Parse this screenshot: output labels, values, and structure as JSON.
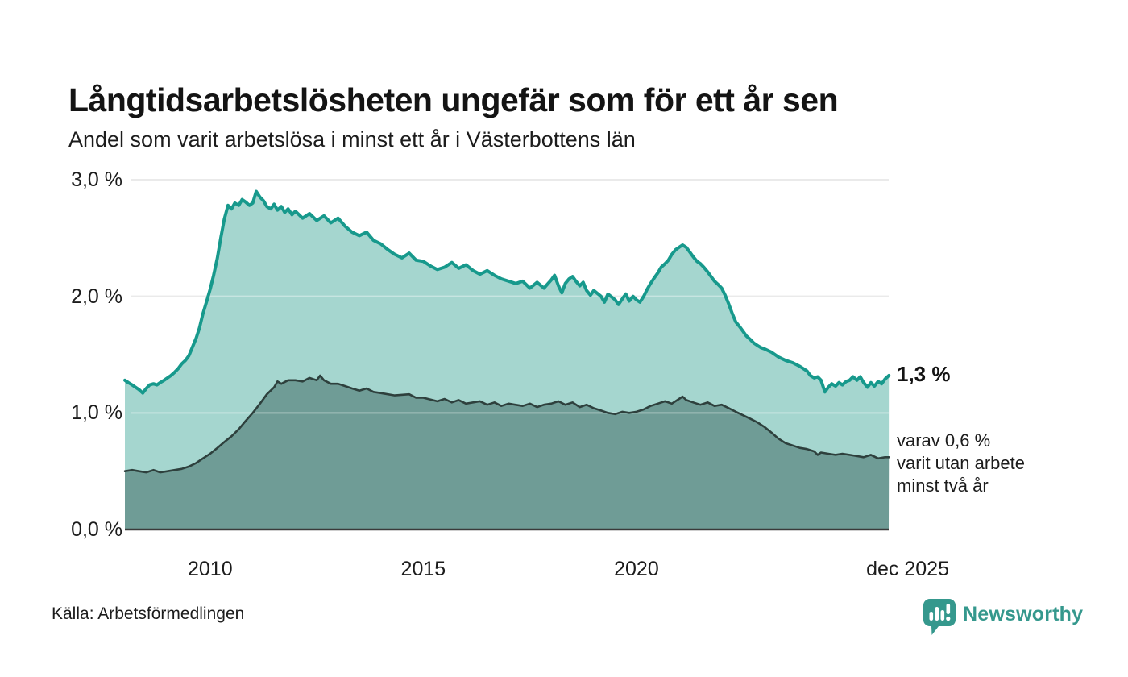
{
  "header": {
    "title": "Långtidsarbetslösheten ungefär som för ett år sen",
    "subtitle": "Andel som varit arbetslösa i minst ett år i Västerbottens län"
  },
  "annotations": {
    "latest_value": "1,3 %",
    "secondary_note": "varav 0,6 %\nvarit utan arbete\nminst två år"
  },
  "source": {
    "label": "Källa: Arbetsförmedlingen"
  },
  "branding": {
    "name": "Newsworthy",
    "icon": "newsworthy-speech-bubble-bar-chart-icon",
    "color": "#35988d"
  },
  "colors": {
    "line_one_year": "#17998c",
    "fill_one_year": "#a5d6cf",
    "line_two_years": "#2e403d",
    "fill_two_years": "#6f9c96",
    "gridline": "#dedede",
    "axis_line": "#3a3a3a",
    "text": "#1c1c1c"
  },
  "chart_data": {
    "type": "area",
    "title": "Långtidsarbetslösheten ungefär som för ett år sen",
    "subtitle": "Andel som varit arbetslösa i minst ett år i Västerbottens län",
    "unit": "%",
    "grid": true,
    "x_axis": {
      "range": [
        2008.0,
        2025.917
      ],
      "ticks": [
        {
          "t": 2010,
          "label": "2010"
        },
        {
          "t": 2015,
          "label": "2015"
        },
        {
          "t": 2020,
          "label": "2020"
        },
        {
          "t": 2025.917,
          "label": "dec 2025"
        }
      ]
    },
    "y_axis": {
      "range": [
        0,
        3
      ],
      "ticks": [
        {
          "v": 3,
          "label": "3,0 %"
        },
        {
          "v": 2,
          "label": "2,0 %"
        },
        {
          "v": 1,
          "label": "1,0 %"
        },
        {
          "v": 0,
          "label": "0,0 %"
        }
      ]
    },
    "series": [
      {
        "name": "arbetslösa minst ett år",
        "latest_label": "1,3 %",
        "line_color": "#17998c",
        "fill_color": "#a5d6cf",
        "line_width": 4,
        "points": [
          [
            2008.0,
            1.28
          ],
          [
            2008.08,
            1.26
          ],
          [
            2008.17,
            1.24
          ],
          [
            2008.25,
            1.22
          ],
          [
            2008.33,
            1.2
          ],
          [
            2008.42,
            1.17
          ],
          [
            2008.5,
            1.21
          ],
          [
            2008.58,
            1.24
          ],
          [
            2008.67,
            1.25
          ],
          [
            2008.75,
            1.24
          ],
          [
            2008.83,
            1.26
          ],
          [
            2008.92,
            1.28
          ],
          [
            2009.0,
            1.3
          ],
          [
            2009.08,
            1.32
          ],
          [
            2009.17,
            1.35
          ],
          [
            2009.25,
            1.38
          ],
          [
            2009.33,
            1.42
          ],
          [
            2009.42,
            1.45
          ],
          [
            2009.5,
            1.49
          ],
          [
            2009.58,
            1.56
          ],
          [
            2009.67,
            1.64
          ],
          [
            2009.75,
            1.73
          ],
          [
            2009.83,
            1.85
          ],
          [
            2009.92,
            1.96
          ],
          [
            2010.0,
            2.06
          ],
          [
            2010.08,
            2.18
          ],
          [
            2010.17,
            2.33
          ],
          [
            2010.25,
            2.5
          ],
          [
            2010.33,
            2.66
          ],
          [
            2010.42,
            2.78
          ],
          [
            2010.5,
            2.75
          ],
          [
            2010.58,
            2.8
          ],
          [
            2010.67,
            2.78
          ],
          [
            2010.75,
            2.83
          ],
          [
            2010.83,
            2.81
          ],
          [
            2010.92,
            2.78
          ],
          [
            2011.0,
            2.8
          ],
          [
            2011.08,
            2.9
          ],
          [
            2011.17,
            2.85
          ],
          [
            2011.25,
            2.82
          ],
          [
            2011.33,
            2.77
          ],
          [
            2011.42,
            2.75
          ],
          [
            2011.5,
            2.79
          ],
          [
            2011.58,
            2.74
          ],
          [
            2011.67,
            2.77
          ],
          [
            2011.75,
            2.72
          ],
          [
            2011.83,
            2.75
          ],
          [
            2011.92,
            2.7
          ],
          [
            2012.0,
            2.73
          ],
          [
            2012.17,
            2.67
          ],
          [
            2012.33,
            2.71
          ],
          [
            2012.5,
            2.65
          ],
          [
            2012.67,
            2.69
          ],
          [
            2012.83,
            2.63
          ],
          [
            2013.0,
            2.67
          ],
          [
            2013.17,
            2.6
          ],
          [
            2013.33,
            2.55
          ],
          [
            2013.5,
            2.52
          ],
          [
            2013.67,
            2.55
          ],
          [
            2013.83,
            2.48
          ],
          [
            2014.0,
            2.45
          ],
          [
            2014.17,
            2.4
          ],
          [
            2014.33,
            2.36
          ],
          [
            2014.5,
            2.33
          ],
          [
            2014.67,
            2.37
          ],
          [
            2014.83,
            2.31
          ],
          [
            2015.0,
            2.3
          ],
          [
            2015.17,
            2.26
          ],
          [
            2015.33,
            2.23
          ],
          [
            2015.5,
            2.25
          ],
          [
            2015.67,
            2.29
          ],
          [
            2015.83,
            2.24
          ],
          [
            2016.0,
            2.27
          ],
          [
            2016.17,
            2.22
          ],
          [
            2016.33,
            2.19
          ],
          [
            2016.5,
            2.22
          ],
          [
            2016.67,
            2.18
          ],
          [
            2016.83,
            2.15
          ],
          [
            2017.0,
            2.13
          ],
          [
            2017.17,
            2.11
          ],
          [
            2017.33,
            2.13
          ],
          [
            2017.5,
            2.07
          ],
          [
            2017.67,
            2.12
          ],
          [
            2017.83,
            2.07
          ],
          [
            2018.0,
            2.14
          ],
          [
            2018.08,
            2.18
          ],
          [
            2018.17,
            2.09
          ],
          [
            2018.25,
            2.03
          ],
          [
            2018.33,
            2.11
          ],
          [
            2018.42,
            2.15
          ],
          [
            2018.5,
            2.17
          ],
          [
            2018.58,
            2.13
          ],
          [
            2018.67,
            2.09
          ],
          [
            2018.75,
            2.12
          ],
          [
            2018.83,
            2.05
          ],
          [
            2018.92,
            2.01
          ],
          [
            2019.0,
            2.05
          ],
          [
            2019.17,
            2.0
          ],
          [
            2019.25,
            1.95
          ],
          [
            2019.33,
            2.02
          ],
          [
            2019.5,
            1.97
          ],
          [
            2019.58,
            1.93
          ],
          [
            2019.67,
            1.98
          ],
          [
            2019.75,
            2.02
          ],
          [
            2019.83,
            1.96
          ],
          [
            2019.92,
            2.0
          ],
          [
            2020.0,
            1.97
          ],
          [
            2020.08,
            1.95
          ],
          [
            2020.17,
            2.0
          ],
          [
            2020.25,
            2.06
          ],
          [
            2020.33,
            2.11
          ],
          [
            2020.42,
            2.16
          ],
          [
            2020.5,
            2.2
          ],
          [
            2020.58,
            2.25
          ],
          [
            2020.67,
            2.28
          ],
          [
            2020.75,
            2.31
          ],
          [
            2020.83,
            2.36
          ],
          [
            2020.92,
            2.4
          ],
          [
            2021.0,
            2.42
          ],
          [
            2021.08,
            2.44
          ],
          [
            2021.17,
            2.42
          ],
          [
            2021.25,
            2.38
          ],
          [
            2021.33,
            2.34
          ],
          [
            2021.42,
            2.3
          ],
          [
            2021.5,
            2.28
          ],
          [
            2021.58,
            2.25
          ],
          [
            2021.67,
            2.21
          ],
          [
            2021.75,
            2.17
          ],
          [
            2021.83,
            2.13
          ],
          [
            2021.92,
            2.1
          ],
          [
            2022.0,
            2.07
          ],
          [
            2022.08,
            2.01
          ],
          [
            2022.17,
            1.93
          ],
          [
            2022.25,
            1.85
          ],
          [
            2022.33,
            1.78
          ],
          [
            2022.42,
            1.74
          ],
          [
            2022.5,
            1.7
          ],
          [
            2022.58,
            1.66
          ],
          [
            2022.67,
            1.63
          ],
          [
            2022.75,
            1.6
          ],
          [
            2022.83,
            1.58
          ],
          [
            2022.92,
            1.56
          ],
          [
            2023.0,
            1.55
          ],
          [
            2023.17,
            1.52
          ],
          [
            2023.33,
            1.48
          ],
          [
            2023.5,
            1.45
          ],
          [
            2023.67,
            1.43
          ],
          [
            2023.83,
            1.4
          ],
          [
            2024.0,
            1.36
          ],
          [
            2024.08,
            1.32
          ],
          [
            2024.17,
            1.3
          ],
          [
            2024.25,
            1.31
          ],
          [
            2024.33,
            1.28
          ],
          [
            2024.42,
            1.18
          ],
          [
            2024.5,
            1.22
          ],
          [
            2024.58,
            1.25
          ],
          [
            2024.67,
            1.23
          ],
          [
            2024.75,
            1.26
          ],
          [
            2024.83,
            1.24
          ],
          [
            2024.92,
            1.27
          ],
          [
            2025.0,
            1.28
          ],
          [
            2025.08,
            1.31
          ],
          [
            2025.17,
            1.28
          ],
          [
            2025.25,
            1.31
          ],
          [
            2025.33,
            1.26
          ],
          [
            2025.42,
            1.22
          ],
          [
            2025.5,
            1.26
          ],
          [
            2025.58,
            1.23
          ],
          [
            2025.67,
            1.27
          ],
          [
            2025.75,
            1.25
          ],
          [
            2025.83,
            1.29
          ],
          [
            2025.92,
            1.32
          ]
        ]
      },
      {
        "name": "varav arbetslösa minst två år",
        "latest_label": "0,6 %",
        "line_color": "#2e403d",
        "fill_color": "#6f9c96",
        "line_width": 2.6,
        "points": [
          [
            2008.0,
            0.5
          ],
          [
            2008.17,
            0.51
          ],
          [
            2008.33,
            0.5
          ],
          [
            2008.5,
            0.49
          ],
          [
            2008.67,
            0.51
          ],
          [
            2008.83,
            0.49
          ],
          [
            2009.0,
            0.5
          ],
          [
            2009.17,
            0.51
          ],
          [
            2009.33,
            0.52
          ],
          [
            2009.5,
            0.54
          ],
          [
            2009.67,
            0.57
          ],
          [
            2009.83,
            0.61
          ],
          [
            2010.0,
            0.65
          ],
          [
            2010.17,
            0.7
          ],
          [
            2010.33,
            0.75
          ],
          [
            2010.5,
            0.8
          ],
          [
            2010.67,
            0.86
          ],
          [
            2010.83,
            0.93
          ],
          [
            2011.0,
            1.0
          ],
          [
            2011.17,
            1.08
          ],
          [
            2011.33,
            1.16
          ],
          [
            2011.5,
            1.22
          ],
          [
            2011.58,
            1.27
          ],
          [
            2011.67,
            1.25
          ],
          [
            2011.83,
            1.28
          ],
          [
            2012.0,
            1.28
          ],
          [
            2012.17,
            1.27
          ],
          [
            2012.33,
            1.3
          ],
          [
            2012.5,
            1.28
          ],
          [
            2012.58,
            1.32
          ],
          [
            2012.67,
            1.28
          ],
          [
            2012.83,
            1.25
          ],
          [
            2013.0,
            1.25
          ],
          [
            2013.17,
            1.23
          ],
          [
            2013.33,
            1.21
          ],
          [
            2013.5,
            1.19
          ],
          [
            2013.67,
            1.21
          ],
          [
            2013.83,
            1.18
          ],
          [
            2014.0,
            1.17
          ],
          [
            2014.33,
            1.15
          ],
          [
            2014.67,
            1.16
          ],
          [
            2014.83,
            1.13
          ],
          [
            2015.0,
            1.13
          ],
          [
            2015.33,
            1.1
          ],
          [
            2015.5,
            1.12
          ],
          [
            2015.67,
            1.09
          ],
          [
            2015.83,
            1.11
          ],
          [
            2016.0,
            1.08
          ],
          [
            2016.33,
            1.1
          ],
          [
            2016.5,
            1.07
          ],
          [
            2016.67,
            1.09
          ],
          [
            2016.83,
            1.06
          ],
          [
            2017.0,
            1.08
          ],
          [
            2017.33,
            1.06
          ],
          [
            2017.5,
            1.08
          ],
          [
            2017.67,
            1.05
          ],
          [
            2017.83,
            1.07
          ],
          [
            2018.0,
            1.08
          ],
          [
            2018.17,
            1.1
          ],
          [
            2018.33,
            1.07
          ],
          [
            2018.5,
            1.09
          ],
          [
            2018.67,
            1.05
          ],
          [
            2018.83,
            1.07
          ],
          [
            2019.0,
            1.04
          ],
          [
            2019.17,
            1.02
          ],
          [
            2019.33,
            1.0
          ],
          [
            2019.5,
            0.99
          ],
          [
            2019.67,
            1.01
          ],
          [
            2019.83,
            1.0
          ],
          [
            2020.0,
            1.01
          ],
          [
            2020.17,
            1.03
          ],
          [
            2020.33,
            1.06
          ],
          [
            2020.5,
            1.08
          ],
          [
            2020.67,
            1.1
          ],
          [
            2020.83,
            1.08
          ],
          [
            2021.0,
            1.12
          ],
          [
            2021.08,
            1.14
          ],
          [
            2021.17,
            1.11
          ],
          [
            2021.33,
            1.09
          ],
          [
            2021.5,
            1.07
          ],
          [
            2021.67,
            1.09
          ],
          [
            2021.83,
            1.06
          ],
          [
            2022.0,
            1.07
          ],
          [
            2022.17,
            1.04
          ],
          [
            2022.33,
            1.01
          ],
          [
            2022.5,
            0.98
          ],
          [
            2022.67,
            0.95
          ],
          [
            2022.83,
            0.92
          ],
          [
            2023.0,
            0.88
          ],
          [
            2023.17,
            0.83
          ],
          [
            2023.33,
            0.78
          ],
          [
            2023.5,
            0.74
          ],
          [
            2023.67,
            0.72
          ],
          [
            2023.83,
            0.7
          ],
          [
            2024.0,
            0.69
          ],
          [
            2024.17,
            0.67
          ],
          [
            2024.25,
            0.64
          ],
          [
            2024.33,
            0.66
          ],
          [
            2024.5,
            0.65
          ],
          [
            2024.67,
            0.64
          ],
          [
            2024.83,
            0.65
          ],
          [
            2025.0,
            0.64
          ],
          [
            2025.17,
            0.63
          ],
          [
            2025.33,
            0.62
          ],
          [
            2025.5,
            0.64
          ],
          [
            2025.67,
            0.61
          ],
          [
            2025.83,
            0.62
          ],
          [
            2025.92,
            0.62
          ]
        ]
      }
    ],
    "plot_geometry": {
      "x0": 155,
      "x1": 1103,
      "y_bottom": 657,
      "y_top": 223
    }
  }
}
